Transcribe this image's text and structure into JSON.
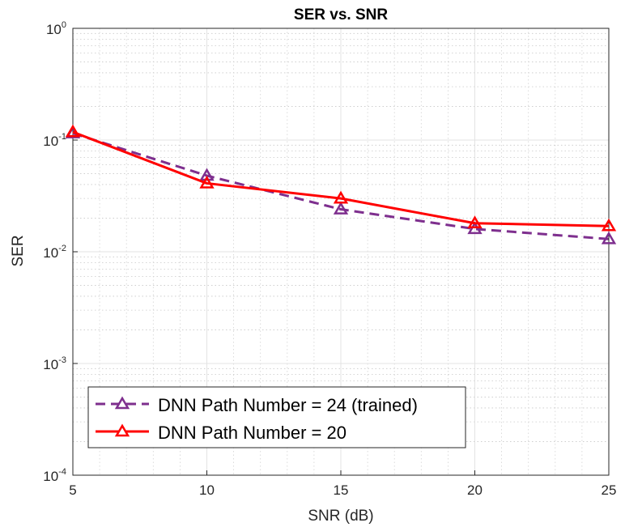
{
  "chart_data": {
    "type": "line",
    "title": "SER vs. SNR",
    "xlabel": "SNR (dB)",
    "ylabel": "SER",
    "xlim": [
      5,
      25
    ],
    "ylim": [
      0.0001,
      1
    ],
    "yscale": "log",
    "grid": true,
    "minor_grid": true,
    "x_ticks": [
      5,
      10,
      15,
      20,
      25
    ],
    "x_tick_labels": [
      "5",
      "10",
      "15",
      "20",
      "25"
    ],
    "y_ticks": [
      {
        "value": 0.0001,
        "base": "10",
        "exp": "-4"
      },
      {
        "value": 0.001,
        "base": "10",
        "exp": "-3"
      },
      {
        "value": 0.01,
        "base": "10",
        "exp": "-2"
      },
      {
        "value": 0.1,
        "base": "10",
        "exp": "-1"
      },
      {
        "value": 1,
        "base": "10",
        "exp": "0"
      }
    ],
    "legend_position": "bottom-left",
    "series": [
      {
        "name": "DNN Path Number = 24 (trained)",
        "color": "#7E2F8E",
        "line_style": "dashed",
        "marker": "triangle",
        "x": [
          5,
          10,
          15,
          20,
          25
        ],
        "y": [
          0.115,
          0.048,
          0.024,
          0.016,
          0.013
        ]
      },
      {
        "name": "DNN Path Number = 20",
        "color": "#FF0000",
        "line_style": "solid",
        "marker": "triangle",
        "x": [
          5,
          10,
          15,
          20,
          25
        ],
        "y": [
          0.118,
          0.041,
          0.03,
          0.018,
          0.017
        ]
      }
    ]
  }
}
